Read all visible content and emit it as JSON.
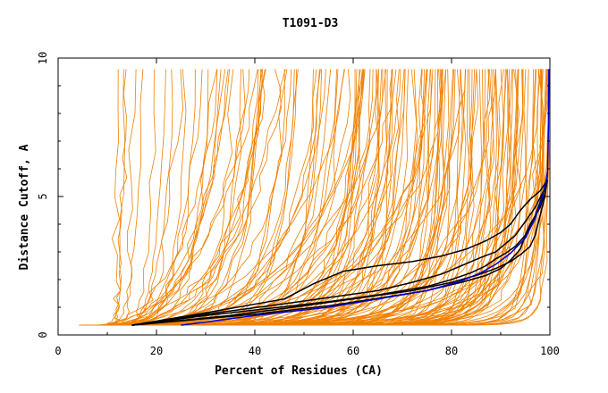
{
  "chart_data": {
    "type": "line",
    "title": "T1091-D3",
    "xlabel": "Percent of Residues (CA)",
    "ylabel": "Distance Cutoff, A",
    "xlim": [
      0,
      100
    ],
    "ylim": [
      0,
      10
    ],
    "x_ticks": [
      0,
      20,
      40,
      60,
      80,
      100
    ],
    "y_ticks": [
      0,
      5,
      10
    ],
    "grid": false,
    "legend": "none",
    "colors": {
      "many_models": "#f08000",
      "highlighted": "#000000",
      "reference": "#0000d0"
    },
    "series": [
      {
        "group": "highlighted",
        "x": [
          15,
          30,
          46,
          52,
          58,
          65,
          72,
          78,
          83,
          87,
          90,
          92,
          94,
          96,
          98,
          99.5
        ],
        "y": [
          0.35,
          0.8,
          1.3,
          1.85,
          2.3,
          2.5,
          2.65,
          2.85,
          3.1,
          3.4,
          3.7,
          4.0,
          4.5,
          4.9,
          5.2,
          5.6
        ]
      },
      {
        "group": "highlighted",
        "x": [
          15,
          30,
          45,
          55,
          65,
          72,
          78,
          82,
          86,
          89,
          91,
          93,
          95,
          97,
          99,
          99.5
        ],
        "y": [
          0.35,
          0.75,
          1.1,
          1.35,
          1.6,
          1.9,
          2.2,
          2.5,
          2.8,
          3.0,
          3.3,
          3.6,
          4.1,
          4.6,
          5.3,
          5.9
        ]
      },
      {
        "group": "highlighted",
        "x": [
          15,
          30,
          45,
          55,
          65,
          75,
          80,
          84,
          87,
          89,
          91,
          93,
          95,
          97,
          99
        ],
        "y": [
          0.35,
          0.7,
          1.0,
          1.2,
          1.45,
          1.75,
          2.0,
          2.25,
          2.5,
          2.75,
          2.95,
          3.2,
          3.6,
          4.3,
          5.3
        ]
      },
      {
        "group": "highlighted",
        "x": [
          15,
          35,
          50,
          62,
          72,
          80,
          85,
          89,
          92,
          94,
          96,
          97,
          98,
          99,
          99.5
        ],
        "y": [
          0.35,
          0.7,
          1.05,
          1.35,
          1.6,
          1.9,
          2.15,
          2.4,
          2.65,
          2.9,
          3.2,
          3.6,
          4.3,
          5.0,
          5.8
        ]
      },
      {
        "group": "highlighted",
        "x": [
          15,
          40,
          55,
          66,
          75,
          82,
          87,
          90,
          92,
          94,
          95,
          96,
          98,
          99,
          99.5
        ],
        "y": [
          0.35,
          0.75,
          1.05,
          1.35,
          1.6,
          1.9,
          2.15,
          2.4,
          2.7,
          3.1,
          3.6,
          4.0,
          4.6,
          5.1,
          5.6
        ]
      },
      {
        "group": "reference",
        "x": [
          25,
          40,
          55,
          65,
          75,
          82,
          86,
          89,
          92,
          95,
          97,
          98.5,
          99.5,
          99.7,
          99.8
        ],
        "y": [
          0.35,
          0.7,
          1.0,
          1.3,
          1.6,
          1.95,
          2.25,
          2.55,
          2.95,
          3.5,
          4.2,
          5.0,
          5.8,
          7.5,
          9.6
        ]
      }
    ]
  }
}
